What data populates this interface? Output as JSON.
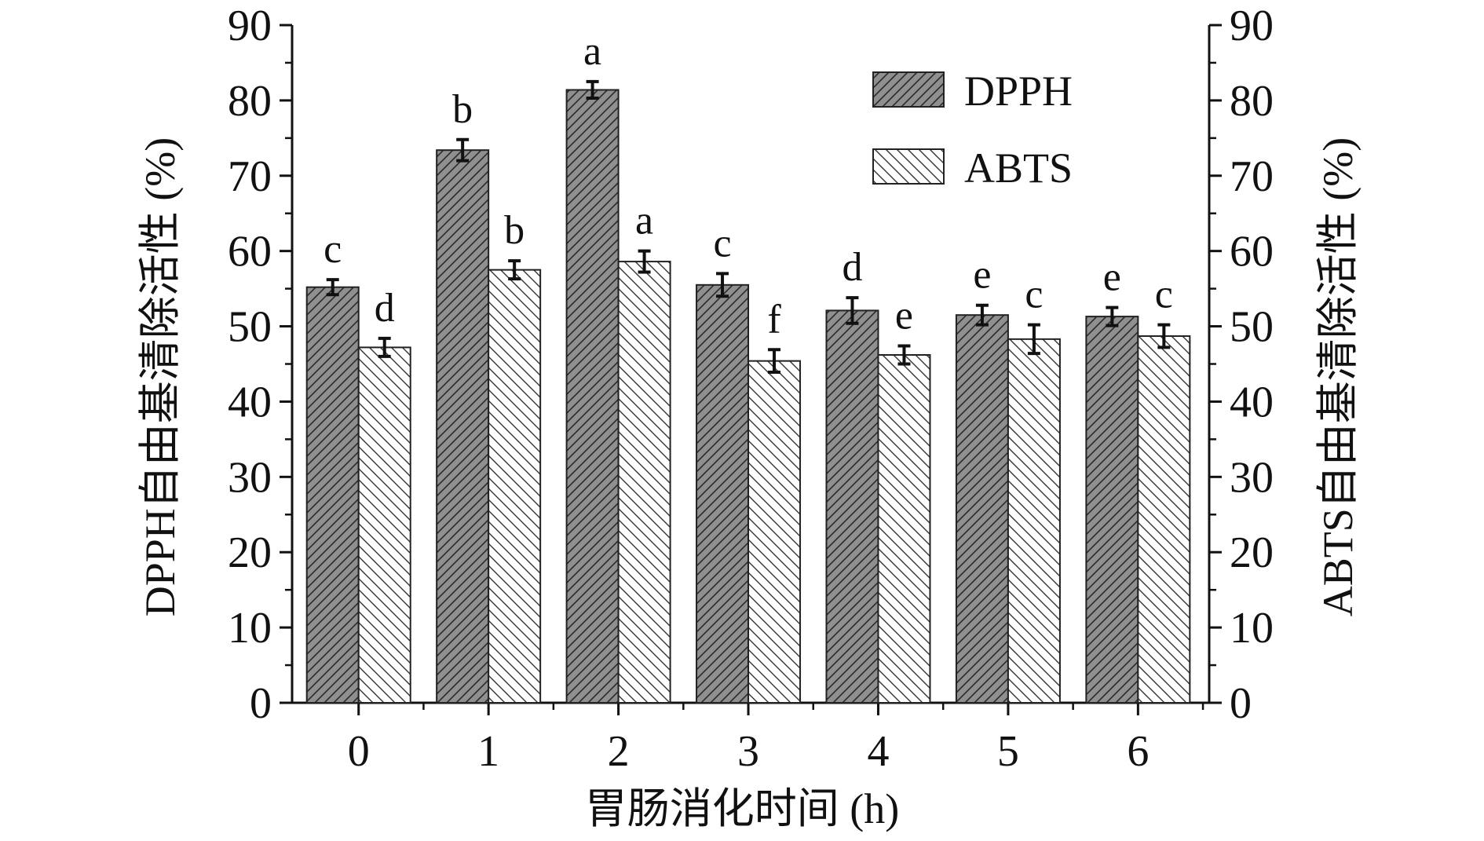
{
  "chart_data": {
    "type": "bar",
    "title": "",
    "xlabel": "胃肠消化时间 (h)",
    "ylabel_left": "DPPH自由基清除活性 (%)",
    "ylabel_right": "ABTS自由基清除活性 (%)",
    "ylim": [
      0,
      90
    ],
    "yticks": [
      0,
      10,
      20,
      30,
      40,
      50,
      60,
      70,
      80,
      90
    ],
    "categories": [
      "0",
      "1",
      "2",
      "3",
      "4",
      "5",
      "6"
    ],
    "legend_position": "top-right",
    "series": [
      {
        "name": "DPPH",
        "pattern": "dense-diagonal-dark",
        "fill_color": "#8f8f8f",
        "values": [
          55.2,
          73.4,
          81.4,
          55.5,
          52.1,
          51.5,
          51.3
        ],
        "errors": [
          1.0,
          1.4,
          1.1,
          1.5,
          1.7,
          1.3,
          1.2
        ],
        "significance": [
          "c",
          "b",
          "a",
          "c",
          "d",
          "e",
          "e"
        ]
      },
      {
        "name": "ABTS",
        "pattern": "sparse-diagonal-light",
        "fill_color": "#ffffff",
        "values": [
          47.2,
          57.5,
          58.6,
          45.4,
          46.2,
          48.3,
          48.7
        ],
        "errors": [
          1.2,
          1.2,
          1.4,
          1.5,
          1.2,
          1.9,
          1.5
        ],
        "significance": [
          "d",
          "b",
          "a",
          "f",
          "e",
          "c",
          "c"
        ]
      }
    ]
  }
}
